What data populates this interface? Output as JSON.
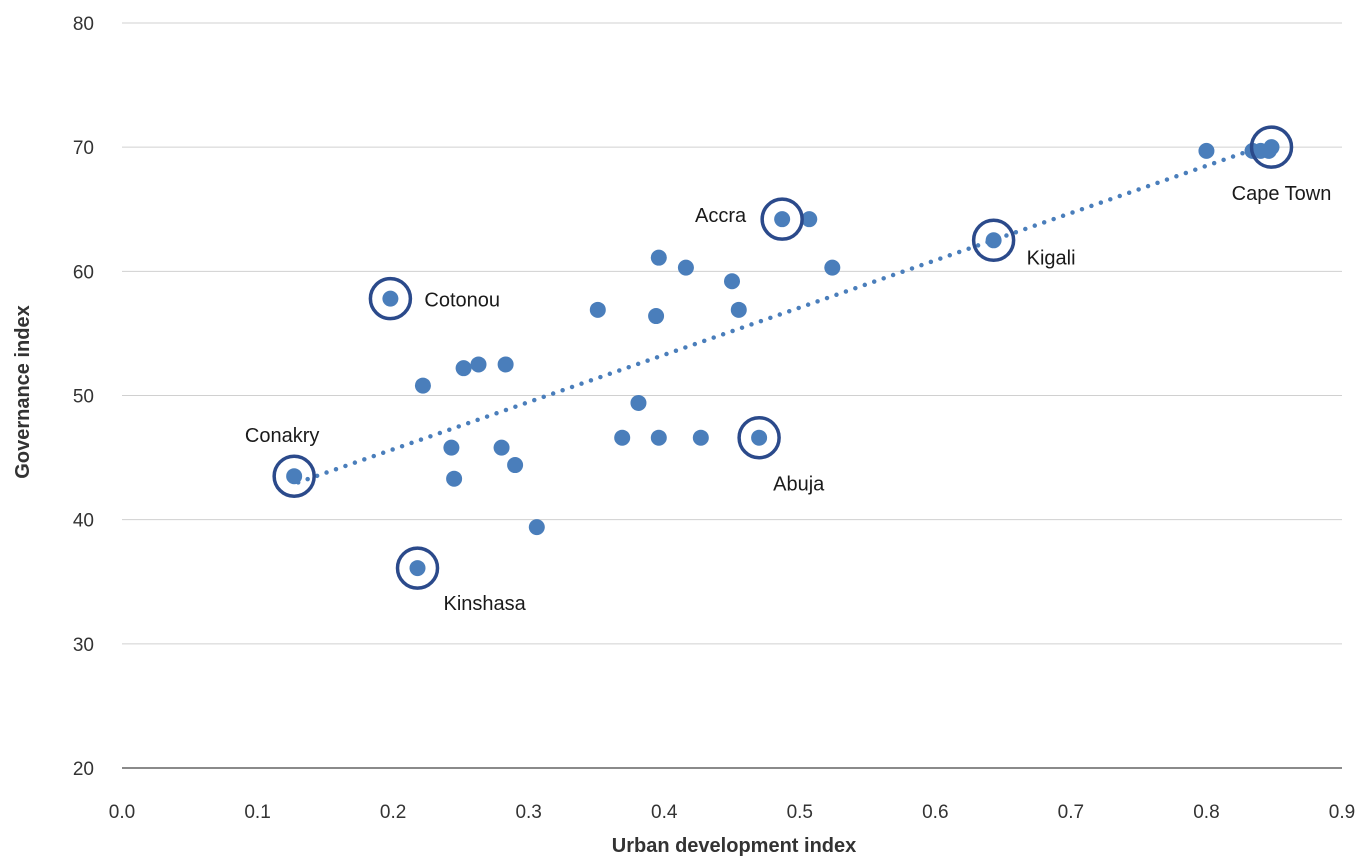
{
  "chart_data": {
    "type": "scatter",
    "xlabel": "Urban development index",
    "ylabel": "Governance index",
    "xlim": [
      0.0,
      0.9
    ],
    "ylim": [
      20,
      80
    ],
    "x_ticks": [
      "0.0",
      "0.1",
      "0.2",
      "0.3",
      "0.4",
      "0.5",
      "0.6",
      "0.7",
      "0.8",
      "0.9"
    ],
    "y_ticks": [
      "20",
      "30",
      "40",
      "50",
      "60",
      "70",
      "80"
    ],
    "grid": "horizontal",
    "colors": {
      "point": "#4a7ebb",
      "highlight": "#2b4a8b",
      "trendline": "#4a7ebb",
      "grid": "#d0d0d0",
      "axis": "#444444"
    },
    "points": [
      {
        "x": 0.127,
        "y": 43.5
      },
      {
        "x": 0.198,
        "y": 57.8
      },
      {
        "x": 0.218,
        "y": 36.1
      },
      {
        "x": 0.222,
        "y": 50.8
      },
      {
        "x": 0.243,
        "y": 45.8
      },
      {
        "x": 0.245,
        "y": 43.3
      },
      {
        "x": 0.252,
        "y": 52.2
      },
      {
        "x": 0.263,
        "y": 52.5
      },
      {
        "x": 0.28,
        "y": 45.8
      },
      {
        "x": 0.283,
        "y": 52.5
      },
      {
        "x": 0.29,
        "y": 44.4
      },
      {
        "x": 0.306,
        "y": 39.4
      },
      {
        "x": 0.351,
        "y": 56.9
      },
      {
        "x": 0.369,
        "y": 46.6
      },
      {
        "x": 0.381,
        "y": 49.4
      },
      {
        "x": 0.394,
        "y": 56.4
      },
      {
        "x": 0.396,
        "y": 61.1
      },
      {
        "x": 0.396,
        "y": 46.6
      },
      {
        "x": 0.416,
        "y": 60.3
      },
      {
        "x": 0.427,
        "y": 46.6
      },
      {
        "x": 0.45,
        "y": 59.2
      },
      {
        "x": 0.455,
        "y": 56.9
      },
      {
        "x": 0.47,
        "y": 46.6
      },
      {
        "x": 0.487,
        "y": 64.2
      },
      {
        "x": 0.507,
        "y": 64.2
      },
      {
        "x": 0.524,
        "y": 60.3
      },
      {
        "x": 0.643,
        "y": 62.5
      },
      {
        "x": 0.8,
        "y": 69.7
      },
      {
        "x": 0.834,
        "y": 69.7
      },
      {
        "x": 0.84,
        "y": 69.7
      },
      {
        "x": 0.846,
        "y": 69.7
      },
      {
        "x": 0.848,
        "y": 70.0
      }
    ],
    "highlighted": [
      {
        "name": "Conakry",
        "x": 0.127,
        "y": 43.5
      },
      {
        "name": "Cotonou",
        "x": 0.198,
        "y": 57.8
      },
      {
        "name": "Kinshasa",
        "x": 0.218,
        "y": 36.1
      },
      {
        "name": "Abuja",
        "x": 0.47,
        "y": 46.6
      },
      {
        "name": "Accra",
        "x": 0.487,
        "y": 64.2
      },
      {
        "name": "Kigali",
        "x": 0.643,
        "y": 62.5
      },
      {
        "name": "Cape Town",
        "x": 0.848,
        "y": 70.0
      }
    ],
    "trendline": {
      "style": "dotted",
      "x": [
        0.13,
        0.85
      ],
      "y": [
        43.0,
        70.4
      ]
    }
  }
}
